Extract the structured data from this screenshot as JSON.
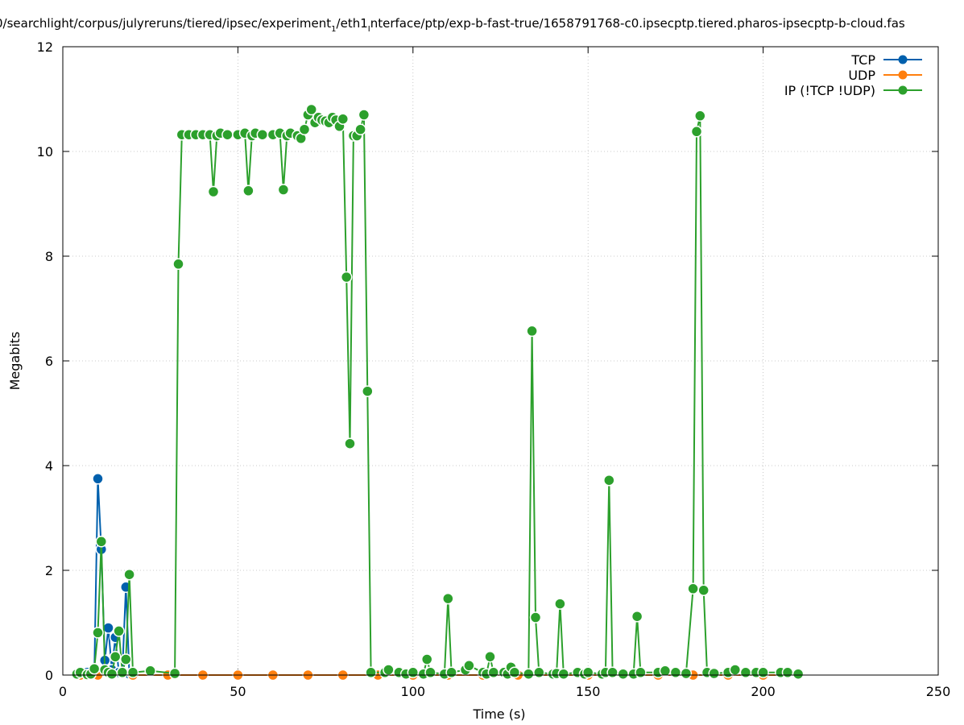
{
  "chart_data": {
    "type": "line",
    "title": "0/searchlight/corpus/julyreruns/tiered/ipsec/experiment",
    "title_sub1": "1",
    "title_mid": "/eth1",
    "title_sub2": "I",
    "title_tail": "nterface/ptp/exp-b-fast-true/1658791768-c0.ipsecptp.tiered.pharos-ipsecptp-b-cloud.fas",
    "xlabel": "Time (s)",
    "ylabel": "Megabits",
    "xlim": [
      0,
      250
    ],
    "ylim": [
      0,
      12
    ],
    "x_ticks": [
      "0",
      "50",
      "100",
      "150",
      "200",
      "250"
    ],
    "y_ticks": [
      "0",
      "2",
      "4",
      "6",
      "8",
      "10",
      "12"
    ],
    "grid": true,
    "legend_position": "top-right",
    "series": [
      {
        "name": "TCP",
        "color": "#0060ad",
        "points": [
          [
            5,
            0.02
          ],
          [
            7,
            0.05
          ],
          [
            9,
            0.02
          ],
          [
            10,
            3.75
          ],
          [
            11,
            2.4
          ],
          [
            12,
            0.28
          ],
          [
            13,
            0.9
          ],
          [
            14,
            0.1
          ],
          [
            15,
            0.72
          ],
          [
            16,
            0.05
          ],
          [
            17,
            0.05
          ],
          [
            18,
            1.68
          ],
          [
            19,
            0.02
          ],
          [
            20,
            0.02
          ]
        ]
      },
      {
        "name": "UDP",
        "color": "#ff7f0e",
        "points": [
          [
            5,
            0
          ],
          [
            10,
            0
          ],
          [
            20,
            0
          ],
          [
            30,
            0
          ],
          [
            40,
            0
          ],
          [
            50,
            0
          ],
          [
            60,
            0
          ],
          [
            70,
            0
          ],
          [
            80,
            0
          ],
          [
            90,
            0
          ],
          [
            100,
            0
          ],
          [
            110,
            0
          ],
          [
            120,
            0
          ],
          [
            130,
            0
          ],
          [
            140,
            0
          ],
          [
            150,
            0
          ],
          [
            160,
            0
          ],
          [
            170,
            0
          ],
          [
            180,
            0
          ],
          [
            190,
            0
          ],
          [
            200,
            0
          ],
          [
            210,
            0
          ]
        ]
      },
      {
        "name": "IP (!TCP  !UDP)",
        "color": "#2ca02c",
        "points": [
          [
            4,
            0.02
          ],
          [
            5,
            0.05
          ],
          [
            7,
            0.01
          ],
          [
            8,
            0.02
          ],
          [
            9,
            0.12
          ],
          [
            10,
            0.81
          ],
          [
            11,
            2.55
          ],
          [
            12,
            0.1
          ],
          [
            13,
            0.05
          ],
          [
            14,
            0.02
          ],
          [
            15,
            0.35
          ],
          [
            16,
            0.84
          ],
          [
            17,
            0.05
          ],
          [
            18,
            0.3
          ],
          [
            19,
            1.92
          ],
          [
            20,
            0.05
          ],
          [
            25,
            0.08
          ],
          [
            32,
            0.03
          ],
          [
            33,
            7.85
          ],
          [
            34,
            10.32
          ],
          [
            36,
            10.32
          ],
          [
            38,
            10.32
          ],
          [
            40,
            10.32
          ],
          [
            42,
            10.32
          ],
          [
            43,
            9.23
          ],
          [
            44,
            10.3
          ],
          [
            45,
            10.35
          ],
          [
            47,
            10.32
          ],
          [
            50,
            10.32
          ],
          [
            52,
            10.35
          ],
          [
            53,
            9.25
          ],
          [
            54,
            10.3
          ],
          [
            55,
            10.35
          ],
          [
            57,
            10.32
          ],
          [
            60,
            10.32
          ],
          [
            62,
            10.35
          ],
          [
            63,
            9.27
          ],
          [
            64,
            10.3
          ],
          [
            65,
            10.35
          ],
          [
            67,
            10.3
          ],
          [
            68,
            10.25
          ],
          [
            69,
            10.42
          ],
          [
            70,
            10.7
          ],
          [
            71,
            10.8
          ],
          [
            72,
            10.55
          ],
          [
            73,
            10.65
          ],
          [
            74,
            10.6
          ],
          [
            75,
            10.58
          ],
          [
            76,
            10.55
          ],
          [
            77,
            10.65
          ],
          [
            78,
            10.6
          ],
          [
            79,
            10.48
          ],
          [
            80,
            10.62
          ],
          [
            81,
            7.6
          ],
          [
            82,
            4.42
          ],
          [
            83,
            10.3
          ],
          [
            84,
            10.3
          ],
          [
            85,
            10.42
          ],
          [
            86,
            10.7
          ],
          [
            87,
            5.42
          ],
          [
            88,
            0.05
          ],
          [
            92,
            0.05
          ],
          [
            93,
            0.1
          ],
          [
            96,
            0.05
          ],
          [
            98,
            0.02
          ],
          [
            100,
            0.05
          ],
          [
            103,
            0.02
          ],
          [
            104,
            0.3
          ],
          [
            105,
            0.05
          ],
          [
            109,
            0.02
          ],
          [
            110,
            1.46
          ],
          [
            111,
            0.05
          ],
          [
            115,
            0.1
          ],
          [
            116,
            0.18
          ],
          [
            120,
            0.05
          ],
          [
            121,
            0.02
          ],
          [
            122,
            0.35
          ],
          [
            123,
            0.05
          ],
          [
            126,
            0.05
          ],
          [
            127,
            0.02
          ],
          [
            128,
            0.15
          ],
          [
            129,
            0.05
          ],
          [
            133,
            0.02
          ],
          [
            134,
            6.57
          ],
          [
            135,
            1.1
          ],
          [
            136,
            0.05
          ],
          [
            140,
            0.02
          ],
          [
            141,
            0.03
          ],
          [
            142,
            1.36
          ],
          [
            143,
            0.02
          ],
          [
            147,
            0.05
          ],
          [
            149,
            0.02
          ],
          [
            150,
            0.05
          ],
          [
            154,
            0.02
          ],
          [
            155,
            0.05
          ],
          [
            156,
            3.72
          ],
          [
            157,
            0.05
          ],
          [
            160,
            0.02
          ],
          [
            163,
            0.02
          ],
          [
            164,
            1.12
          ],
          [
            165,
            0.05
          ],
          [
            170,
            0.05
          ],
          [
            172,
            0.08
          ],
          [
            175,
            0.05
          ],
          [
            178,
            0.03
          ],
          [
            180,
            1.65
          ],
          [
            181,
            10.38
          ],
          [
            182,
            10.68
          ],
          [
            183,
            1.62
          ],
          [
            184,
            0.05
          ],
          [
            186,
            0.03
          ],
          [
            190,
            0.05
          ],
          [
            192,
            0.1
          ],
          [
            195,
            0.05
          ],
          [
            198,
            0.05
          ],
          [
            200,
            0.05
          ],
          [
            205,
            0.05
          ],
          [
            207,
            0.05
          ],
          [
            210,
            0.02
          ]
        ]
      }
    ]
  }
}
